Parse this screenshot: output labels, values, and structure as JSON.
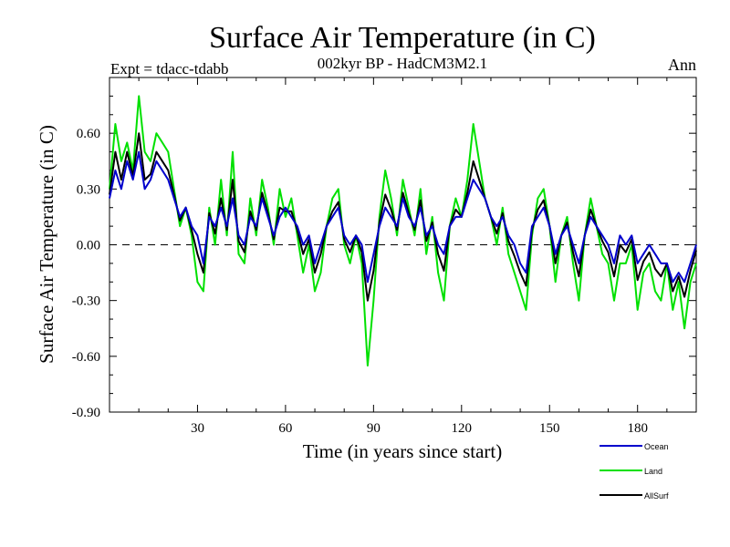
{
  "chart_data": {
    "type": "line",
    "title": "Surface Air Temperature (in C)",
    "subtitle": "002kyr BP - HadCM3M2.1",
    "left_label": "Expt = tdacc-tdabb",
    "right_label": "Ann",
    "xlabel": "Time (in years since start)",
    "ylabel": "Surface Air Temperature (in C)",
    "xlim": [
      0,
      200
    ],
    "ylim": [
      -0.9,
      0.9
    ],
    "xticks": [
      30,
      60,
      90,
      120,
      150,
      180
    ],
    "yticks": [
      -0.9,
      -0.6,
      -0.3,
      0.0,
      0.3,
      0.6
    ],
    "ytick_labels": [
      "-0.90",
      "-0.60",
      "-0.30",
      "0.00",
      "0.30",
      "0.60"
    ],
    "zero_line": "dashed",
    "legend_position": "bottom-right",
    "series": [
      {
        "name": "Ocean",
        "color": "#0000cc",
        "x": [
          0,
          2,
          4,
          6,
          8,
          10,
          12,
          14,
          16,
          18,
          20,
          22,
          24,
          26,
          28,
          30,
          32,
          34,
          36,
          38,
          40,
          42,
          44,
          46,
          48,
          50,
          52,
          54,
          56,
          58,
          60,
          62,
          64,
          66,
          68,
          70,
          72,
          74,
          76,
          78,
          80,
          82,
          84,
          86,
          88,
          90,
          92,
          94,
          96,
          98,
          100,
          102,
          104,
          106,
          108,
          110,
          112,
          114,
          116,
          118,
          120,
          122,
          124,
          126,
          128,
          130,
          132,
          134,
          136,
          138,
          140,
          142,
          144,
          146,
          148,
          150,
          152,
          154,
          156,
          158,
          160,
          162,
          164,
          166,
          168,
          170,
          172,
          174,
          176,
          178,
          180,
          182,
          184,
          186,
          188,
          190,
          192,
          194,
          196,
          198,
          200
        ],
        "values": [
          0.25,
          0.4,
          0.3,
          0.45,
          0.35,
          0.5,
          0.3,
          0.35,
          0.45,
          0.4,
          0.35,
          0.25,
          0.15,
          0.2,
          0.1,
          0.05,
          -0.1,
          0.15,
          0.1,
          0.2,
          0.1,
          0.25,
          0.05,
          0.0,
          0.15,
          0.1,
          0.25,
          0.15,
          0.05,
          0.15,
          0.2,
          0.15,
          0.1,
          0.0,
          0.05,
          -0.1,
          0.0,
          0.1,
          0.15,
          0.2,
          0.05,
          0.0,
          0.05,
          0.0,
          -0.2,
          -0.05,
          0.1,
          0.2,
          0.15,
          0.1,
          0.25,
          0.15,
          0.1,
          0.2,
          0.05,
          0.1,
          0.0,
          -0.05,
          0.1,
          0.15,
          0.15,
          0.25,
          0.35,
          0.3,
          0.25,
          0.15,
          0.1,
          0.15,
          0.05,
          0.0,
          -0.1,
          -0.15,
          0.1,
          0.15,
          0.2,
          0.1,
          -0.05,
          0.05,
          0.1,
          0.0,
          -0.1,
          0.05,
          0.15,
          0.1,
          0.05,
          0.0,
          -0.1,
          0.05,
          0.0,
          0.05,
          -0.1,
          -0.05,
          0.0,
          -0.05,
          -0.1,
          -0.1,
          -0.2,
          -0.15,
          -0.2,
          -0.1,
          0.0
        ]
      },
      {
        "name": "Land",
        "color": "#00e000",
        "x": [
          0,
          2,
          4,
          6,
          8,
          10,
          12,
          14,
          16,
          18,
          20,
          22,
          24,
          26,
          28,
          30,
          32,
          34,
          36,
          38,
          40,
          42,
          44,
          46,
          48,
          50,
          52,
          54,
          56,
          58,
          60,
          62,
          64,
          66,
          68,
          70,
          72,
          74,
          76,
          78,
          80,
          82,
          84,
          86,
          88,
          90,
          92,
          94,
          96,
          98,
          100,
          102,
          104,
          106,
          108,
          110,
          112,
          114,
          116,
          118,
          120,
          122,
          124,
          126,
          128,
          130,
          132,
          134,
          136,
          138,
          140,
          142,
          144,
          146,
          148,
          150,
          152,
          154,
          156,
          158,
          160,
          162,
          164,
          166,
          168,
          170,
          172,
          174,
          176,
          178,
          180,
          182,
          184,
          186,
          188,
          190,
          192,
          194,
          196,
          198,
          200
        ],
        "values": [
          0.3,
          0.65,
          0.45,
          0.55,
          0.4,
          0.8,
          0.5,
          0.45,
          0.6,
          0.55,
          0.5,
          0.3,
          0.1,
          0.2,
          0.05,
          -0.2,
          -0.25,
          0.2,
          0.0,
          0.35,
          0.05,
          0.5,
          -0.05,
          -0.1,
          0.25,
          0.05,
          0.35,
          0.2,
          0.0,
          0.3,
          0.15,
          0.25,
          0.05,
          -0.15,
          0.0,
          -0.25,
          -0.15,
          0.1,
          0.25,
          0.3,
          0.0,
          -0.1,
          0.05,
          -0.1,
          -0.65,
          -0.3,
          0.15,
          0.4,
          0.25,
          0.05,
          0.35,
          0.2,
          0.05,
          0.3,
          -0.05,
          0.15,
          -0.15,
          -0.3,
          0.1,
          0.25,
          0.15,
          0.35,
          0.65,
          0.45,
          0.25,
          0.15,
          0.0,
          0.2,
          -0.05,
          -0.15,
          -0.25,
          -0.35,
          0.05,
          0.25,
          0.3,
          0.1,
          -0.2,
          0.05,
          0.15,
          -0.1,
          -0.3,
          0.05,
          0.25,
          0.1,
          -0.05,
          -0.1,
          -0.3,
          -0.1,
          -0.1,
          0.0,
          -0.35,
          -0.15,
          -0.1,
          -0.25,
          -0.3,
          -0.1,
          -0.35,
          -0.2,
          -0.45,
          -0.2,
          -0.1
        ]
      },
      {
        "name": "AllSurf",
        "color": "#000000",
        "x": [
          0,
          2,
          4,
          6,
          8,
          10,
          12,
          14,
          16,
          18,
          20,
          22,
          24,
          26,
          28,
          30,
          32,
          34,
          36,
          38,
          40,
          42,
          44,
          46,
          48,
          50,
          52,
          54,
          56,
          58,
          60,
          62,
          64,
          66,
          68,
          70,
          72,
          74,
          76,
          78,
          80,
          82,
          84,
          86,
          88,
          90,
          92,
          94,
          96,
          98,
          100,
          102,
          104,
          106,
          108,
          110,
          112,
          114,
          116,
          118,
          120,
          122,
          124,
          126,
          128,
          130,
          132,
          134,
          136,
          138,
          140,
          142,
          144,
          146,
          148,
          150,
          152,
          154,
          156,
          158,
          160,
          162,
          164,
          166,
          168,
          170,
          172,
          174,
          176,
          178,
          180,
          182,
          184,
          186,
          188,
          190,
          192,
          194,
          196,
          198,
          200
        ],
        "values": [
          0.27,
          0.5,
          0.35,
          0.5,
          0.37,
          0.6,
          0.35,
          0.38,
          0.5,
          0.45,
          0.4,
          0.27,
          0.13,
          0.2,
          0.08,
          -0.05,
          -0.15,
          0.17,
          0.06,
          0.25,
          0.08,
          0.35,
          0.02,
          -0.04,
          0.18,
          0.08,
          0.28,
          0.17,
          0.03,
          0.2,
          0.18,
          0.18,
          0.08,
          -0.05,
          0.03,
          -0.15,
          -0.05,
          0.1,
          0.18,
          0.23,
          0.03,
          -0.04,
          0.05,
          -0.04,
          -0.3,
          -0.14,
          0.12,
          0.27,
          0.19,
          0.08,
          0.28,
          0.17,
          0.08,
          0.24,
          0.02,
          0.12,
          -0.05,
          -0.14,
          0.1,
          0.19,
          0.15,
          0.28,
          0.45,
          0.35,
          0.25,
          0.15,
          0.06,
          0.17,
          0.02,
          -0.06,
          -0.15,
          -0.22,
          0.08,
          0.19,
          0.24,
          0.1,
          -0.1,
          0.05,
          0.12,
          -0.04,
          -0.17,
          0.05,
          0.19,
          0.1,
          0.02,
          -0.04,
          -0.17,
          0.0,
          -0.04,
          0.03,
          -0.19,
          -0.09,
          -0.04,
          -0.13,
          -0.17,
          -0.1,
          -0.25,
          -0.17,
          -0.28,
          -0.14,
          -0.03
        ]
      }
    ]
  }
}
